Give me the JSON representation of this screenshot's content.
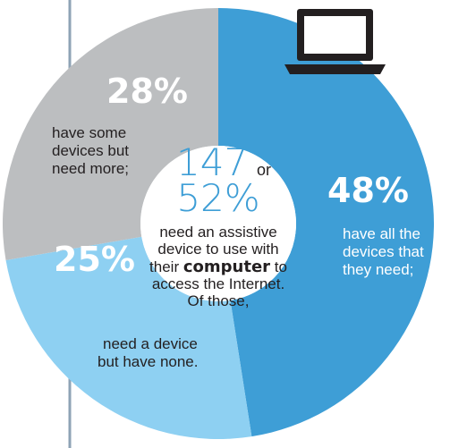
{
  "chart_data": {
    "type": "pie",
    "variant": "donut",
    "slices": [
      {
        "key": "all",
        "value": 48,
        "label": "48%",
        "desc_lines": [
          "have all the",
          "devices that",
          "they need;"
        ],
        "color": "#3e9ed6"
      },
      {
        "key": "none",
        "value": 25,
        "label": "25%",
        "desc_lines": [
          "need a device",
          "but have none."
        ],
        "color": "#8ed0f2"
      },
      {
        "key": "some",
        "value": 28,
        "label": "28%",
        "desc_lines": [
          "have some",
          "devices but",
          "need more;"
        ],
        "color": "#bcbec0"
      }
    ],
    "center": {
      "count": "147",
      "or_text": "or",
      "percent": "52%",
      "lines": [
        "need an assistive",
        "device to use with"
      ],
      "line3_pre": "their ",
      "line3_bold": "computer",
      "line3_post": " to",
      "line4": "access the Internet.",
      "line5": "Of those,"
    },
    "colors": {
      "accent_text": "#3e9ed6",
      "divider": "#8ea3b5",
      "laptop": "#231f20"
    },
    "icon": "laptop-icon"
  }
}
